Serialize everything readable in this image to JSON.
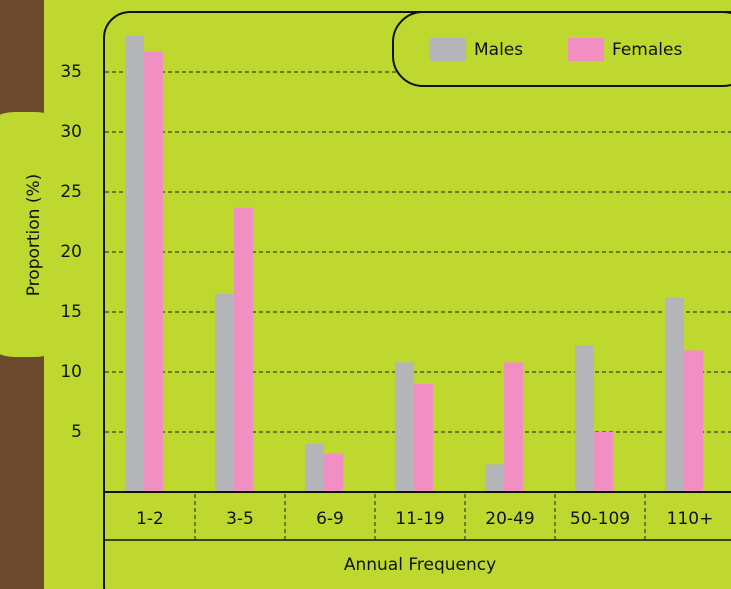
{
  "chart_data": {
    "type": "bar",
    "y_label": "Proportion (%)",
    "x_label": "Annual Frequency",
    "categories": [
      "1-2",
      "3-5",
      "6-9",
      "11-19",
      "20-49",
      "50-109",
      "110+"
    ],
    "series": [
      {
        "name": "Males",
        "color": "#b4b5b9",
        "values": [
          38,
          16.5,
          4,
          10.8,
          2.3,
          12.2,
          16.2
        ]
      },
      {
        "name": "Females",
        "color": "#f28fc2",
        "values": [
          36.7,
          23.7,
          3.2,
          9,
          10.8,
          5,
          11.8
        ]
      }
    ],
    "ylim": [
      0,
      40
    ],
    "yticks": [
      5,
      10,
      15,
      20,
      25,
      30,
      35
    ],
    "grid": true,
    "legend": "top-right"
  }
}
